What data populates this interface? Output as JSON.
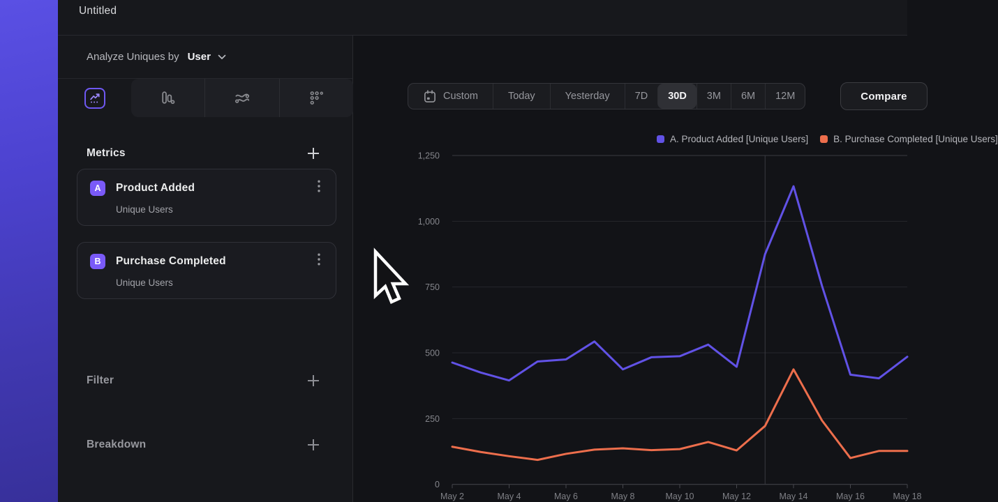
{
  "window": {
    "title": "Untitled"
  },
  "sidebar": {
    "analyze_label": "Analyze Uniques by",
    "analyze_value": "User",
    "tabs": [
      {
        "icon": "line-chart-icon",
        "selected": true
      },
      {
        "icon": "bar-chart-icon",
        "selected": false
      },
      {
        "icon": "flows-icon",
        "selected": false
      },
      {
        "icon": "grid-dots-icon",
        "selected": false
      }
    ],
    "metrics": {
      "heading": "Metrics",
      "items": [
        {
          "badge": "A",
          "title": "Product Added",
          "subtitle": "Unique Users"
        },
        {
          "badge": "B",
          "title": "Purchase Completed",
          "subtitle": "Unique Users"
        }
      ]
    },
    "filter_heading": "Filter",
    "breakdown_heading": "Breakdown"
  },
  "toolbar": {
    "ranges": [
      "Custom",
      "Today",
      "Yesterday",
      "7D",
      "30D",
      "3M",
      "6M",
      "12M"
    ],
    "selected": "30D",
    "compare_label": "Compare",
    "custom_icon": "calendar-icon"
  },
  "chart_data": {
    "type": "line",
    "x": [
      "May 2",
      "May 3",
      "May 4",
      "May 5",
      "May 6",
      "May 7",
      "May 8",
      "May 9",
      "May 10",
      "May 11",
      "May 12",
      "May 13",
      "May 14",
      "May 15",
      "May 16",
      "May 17",
      "May 18"
    ],
    "series": [
      {
        "name": "A. Product Added [Unique Users]",
        "color": "#6152e6",
        "values": [
          463,
          425,
          395,
          467,
          475,
          543,
          437,
          483,
          487,
          531,
          447,
          875,
          1133,
          755,
          417,
          403,
          485
        ]
      },
      {
        "name": "B. Purchase Completed [Unique Users]",
        "color": "#ed6e4c",
        "values": [
          143,
          123,
          107,
          93,
          116,
          132,
          137,
          130,
          134,
          161,
          129,
          222,
          437,
          243,
          100,
          127,
          127
        ]
      }
    ],
    "ylim": [
      0,
      1250
    ],
    "yticks": [
      0,
      250,
      500,
      750,
      1000,
      1250
    ],
    "ytick_labels": [
      "0",
      "250",
      "500",
      "750",
      "1,000",
      "1,250"
    ],
    "x_tick_labels": [
      "May 2",
      "May 4",
      "May 6",
      "May 8",
      "May 10",
      "May 12",
      "May 14",
      "May 16",
      "May 18"
    ],
    "vline_index": 11,
    "grid": "horizontal",
    "legend_position": "top-right"
  },
  "colors": {
    "accent_purple": "#6152e6",
    "accent_orange": "#ed6e4c",
    "badge_purple": "#7a5af8",
    "sidebar_bg": "#17181c",
    "main_bg": "#121317",
    "card_bg": "#1a1b20",
    "border": "#292a2f",
    "text_primary": "#eceded",
    "text_secondary": "#a2a3a9"
  }
}
